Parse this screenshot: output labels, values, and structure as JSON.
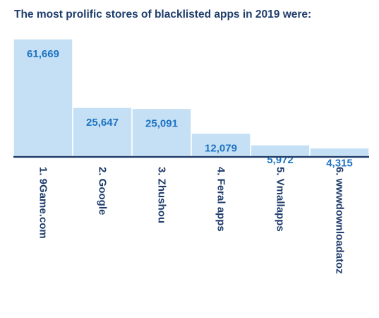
{
  "chart_data": {
    "type": "bar",
    "title": "The most prolific stores of blacklisted apps in 2019 were:",
    "categories": [
      "1. 9Game.com",
      "2. Google",
      "3. Zhushou",
      "4. Feral apps",
      "5. Vmallapps",
      "6. wwwdownloadatoz"
    ],
    "values": [
      61669,
      25647,
      25091,
      12079,
      5972,
      4315
    ],
    "value_labels": [
      "61,669",
      "25,647",
      "25,091",
      "12,079",
      "5,972",
      "4,315"
    ],
    "xlabel": "",
    "ylabel": "",
    "ylim": [
      0,
      61669
    ],
    "grid": false,
    "legend": "none",
    "colors": {
      "bar_fill": "#c5e0f5",
      "bar_edge": "#ffffff",
      "value_label": "#1d73c2",
      "category_label": "#1f3d6b",
      "baseline": "#1f3d6b",
      "title": "#1f3d6b"
    }
  }
}
